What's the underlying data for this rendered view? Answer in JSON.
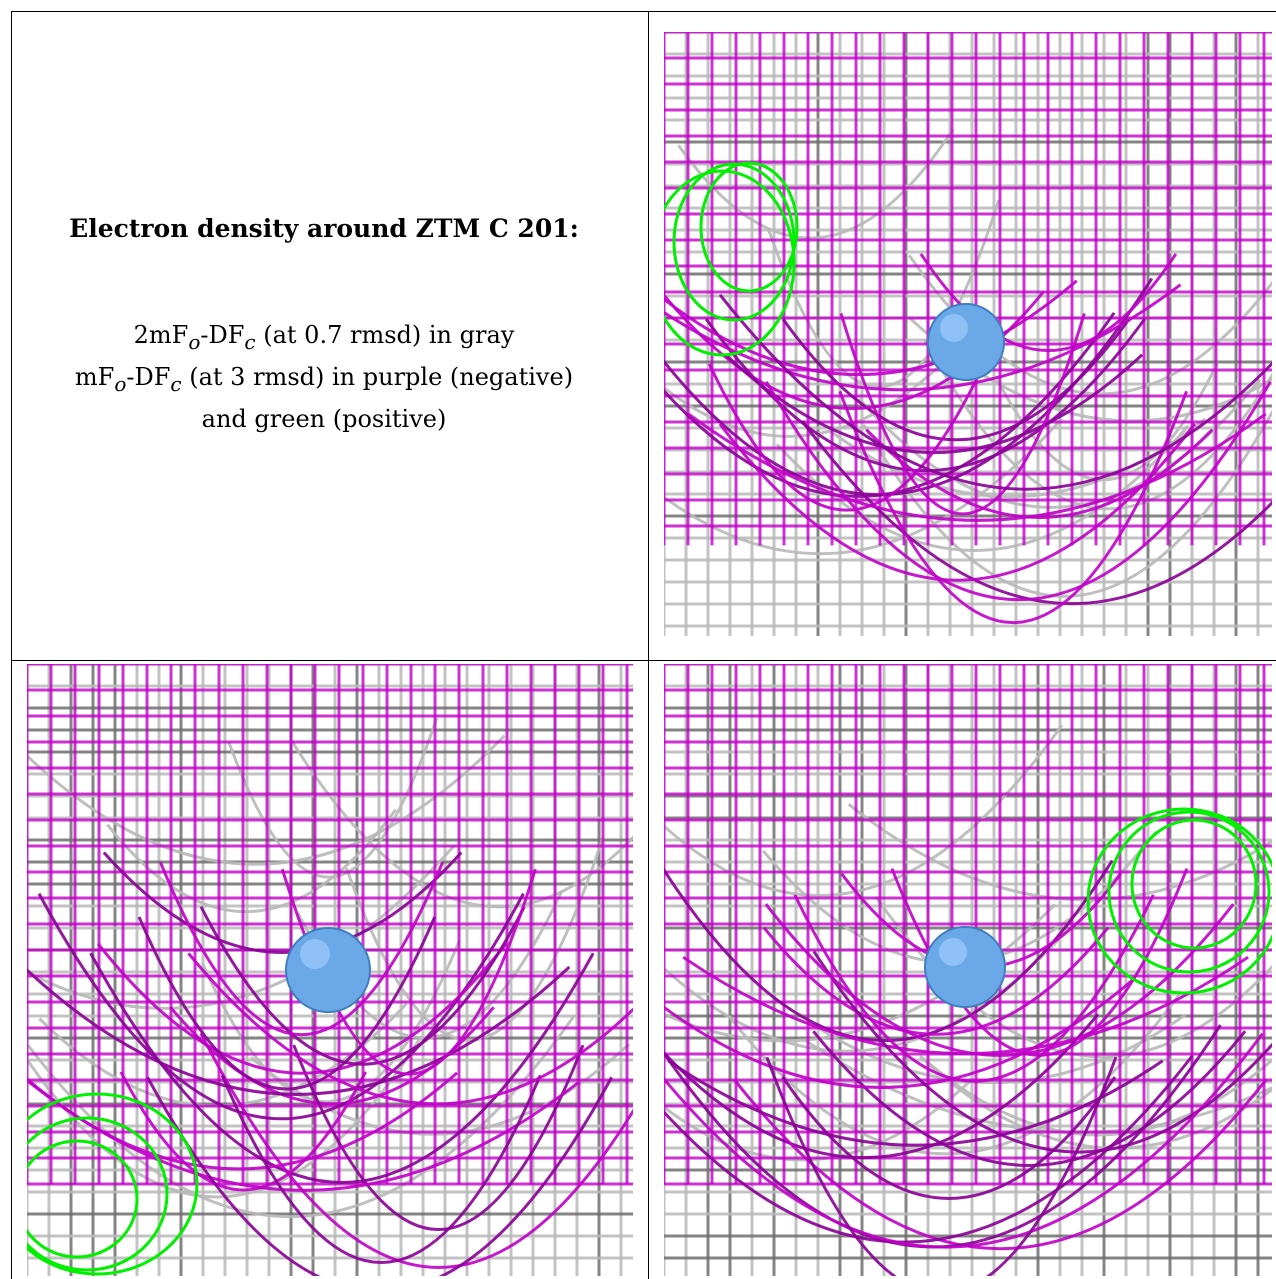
{
  "caption": {
    "title": "Electron density around ZTM C 201:",
    "line1_a": "2mF",
    "line1_sub1": "o",
    "line1_b": "-DF",
    "line1_sub2": "c",
    "line1_c": " (at 0.7 rmsd) in gray",
    "line2_a": "mF",
    "line2_sub1": "o",
    "line2_b": "-DF",
    "line2_sub2": "c",
    "line2_c": " (at 3 rmsd) in purple (negative)",
    "line3": "and green (positive)"
  },
  "colors": {
    "gray_mesh": "#b8b8b8",
    "gray_mesh_dark": "#6e6e6e",
    "purple_mesh": "#c000c8",
    "purple_mesh_dark": "#8a0096",
    "green_mesh": "#00f000",
    "atom_sphere": "#6aa8e8"
  },
  "panels": [
    {
      "name": "top-right-view"
    },
    {
      "name": "bottom-left-view"
    },
    {
      "name": "bottom-right-view"
    }
  ]
}
